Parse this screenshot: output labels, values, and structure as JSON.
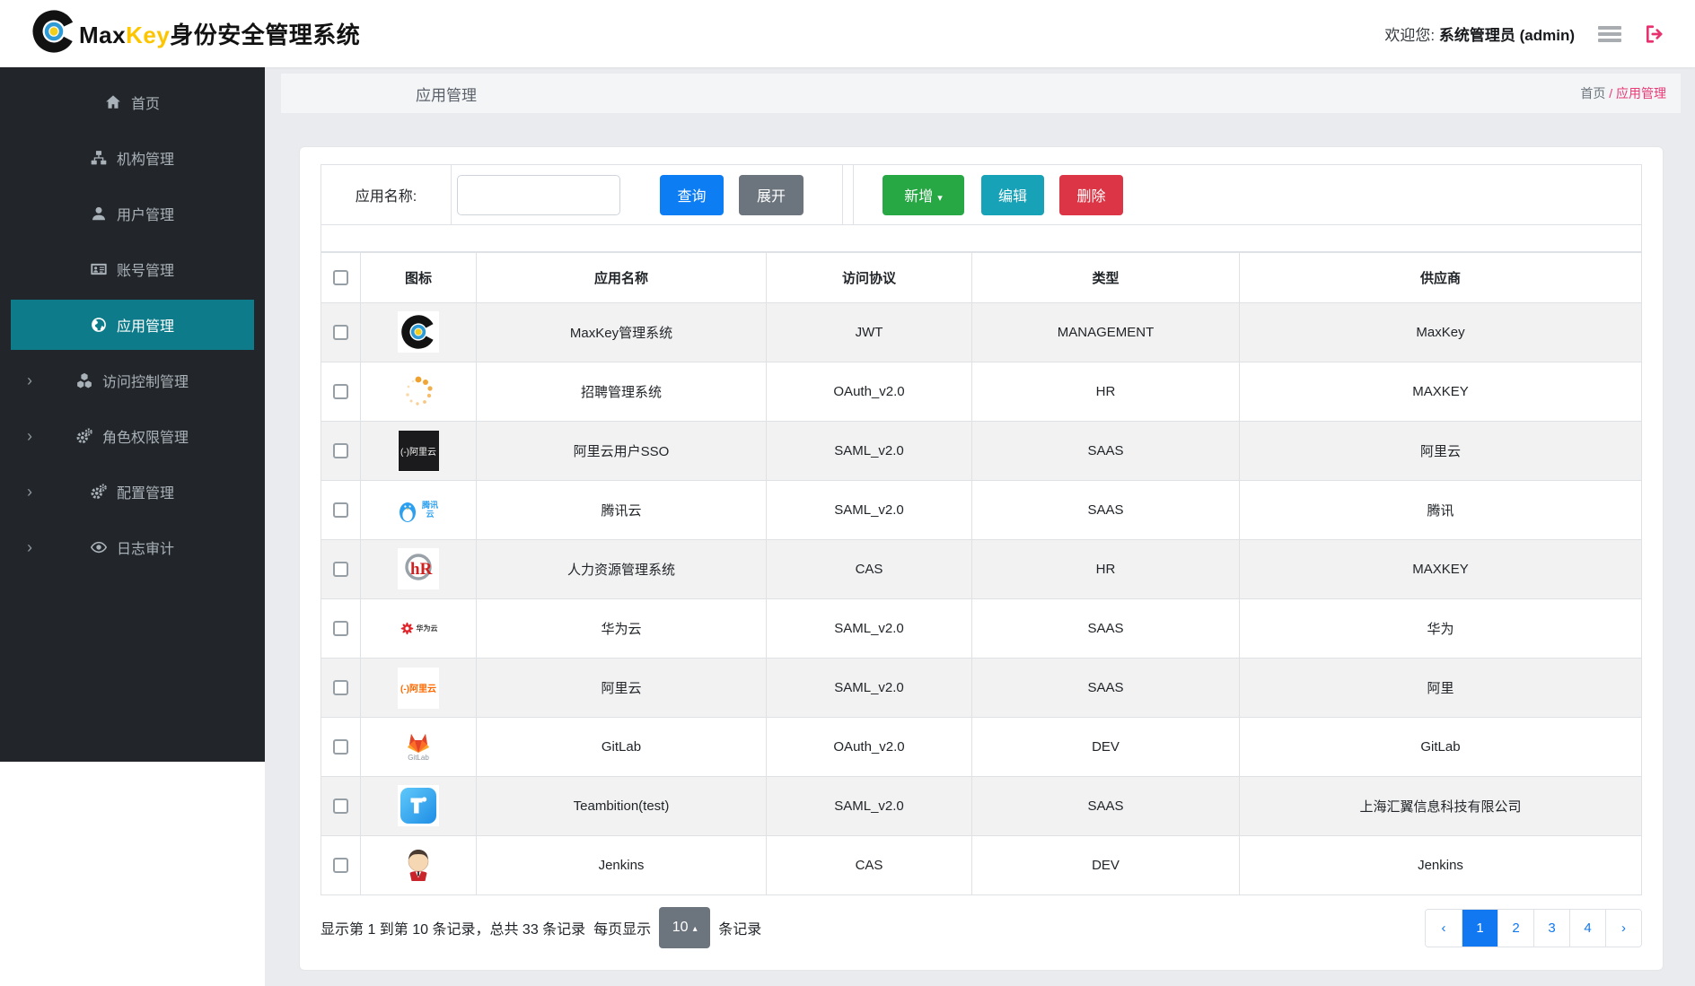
{
  "header": {
    "brand_max": "Max",
    "brand_key": "Key",
    "brand_suffix": "身份安全管理系统",
    "welcome_prefix": "欢迎您:",
    "welcome_user": "系统管理员 (admin)"
  },
  "sidebar": {
    "items": [
      {
        "key": "home",
        "label": "首页",
        "icon": "home-icon",
        "active": false,
        "expandable": false
      },
      {
        "key": "org",
        "label": "机构管理",
        "icon": "sitemap-icon",
        "active": false,
        "expandable": false
      },
      {
        "key": "user",
        "label": "用户管理",
        "icon": "user-icon",
        "active": false,
        "expandable": false
      },
      {
        "key": "account",
        "label": "账号管理",
        "icon": "id-card-icon",
        "active": false,
        "expandable": false
      },
      {
        "key": "app",
        "label": "应用管理",
        "icon": "globe-icon",
        "active": true,
        "expandable": false
      },
      {
        "key": "access",
        "label": "访问控制管理",
        "icon": "cubes-icon",
        "active": false,
        "expandable": true
      },
      {
        "key": "role",
        "label": "角色权限管理",
        "icon": "gears-icon",
        "active": false,
        "expandable": true
      },
      {
        "key": "config",
        "label": "配置管理",
        "icon": "gears-icon",
        "active": false,
        "expandable": true
      },
      {
        "key": "audit",
        "label": "日志审计",
        "icon": "eye-icon",
        "active": false,
        "expandable": true
      }
    ]
  },
  "page": {
    "title": "应用管理",
    "breadcrumb_home": "首页",
    "breadcrumb_sep": "/",
    "breadcrumb_current": "应用管理"
  },
  "toolbar": {
    "search_label": "应用名称:",
    "search_value": "",
    "query_label": "查询",
    "expand_label": "展开",
    "add_label": "新增",
    "add_caret": "▾",
    "edit_label": "编辑",
    "delete_label": "删除"
  },
  "table": {
    "columns": [
      "图标",
      "应用名称",
      "访问协议",
      "类型",
      "供应商"
    ],
    "rows": [
      {
        "icon": "maxkey-logo-icon",
        "name": "MaxKey管理系统",
        "protocol": "JWT",
        "type": "MANAGEMENT",
        "vendor": "MaxKey"
      },
      {
        "icon": "spinner-dots-icon",
        "name": "招聘管理系统",
        "protocol": "OAuth_v2.0",
        "type": "HR",
        "vendor": "MAXKEY"
      },
      {
        "icon": "aliyun-dark-icon",
        "name": "阿里云用户SSO",
        "protocol": "SAML_v2.0",
        "type": "SAAS",
        "vendor": "阿里云"
      },
      {
        "icon": "tencent-cloud-icon",
        "name": "腾讯云",
        "protocol": "SAML_v2.0",
        "type": "SAAS",
        "vendor": "腾讯"
      },
      {
        "icon": "hr-system-icon",
        "name": "人力资源管理系统",
        "protocol": "CAS",
        "type": "HR",
        "vendor": "MAXKEY"
      },
      {
        "icon": "huawei-cloud-icon",
        "name": "华为云",
        "protocol": "SAML_v2.0",
        "type": "SAAS",
        "vendor": "华为"
      },
      {
        "icon": "aliyun-light-icon",
        "name": "阿里云",
        "protocol": "SAML_v2.0",
        "type": "SAAS",
        "vendor": "阿里"
      },
      {
        "icon": "gitlab-icon",
        "name": "GitLab",
        "protocol": "OAuth_v2.0",
        "type": "DEV",
        "vendor": "GitLab"
      },
      {
        "icon": "teambition-icon",
        "name": "Teambition(test)",
        "protocol": "SAML_v2.0",
        "type": "SAAS",
        "vendor": "上海汇翼信息科技有限公司"
      },
      {
        "icon": "jenkins-icon",
        "name": "Jenkins",
        "protocol": "CAS",
        "type": "DEV",
        "vendor": "Jenkins"
      }
    ],
    "tile_texts": {
      "aliyun": "(-)阿里云",
      "tencent": "腾讯云",
      "huawei": "华为云",
      "gitlab": "GitLab"
    }
  },
  "footer": {
    "records_text": "显示第 1 到第 10 条记录，总共 33 条记录",
    "per_page_prefix": "每页显示",
    "page_size": "10",
    "page_size_caret": "▴",
    "per_page_suffix": "条记录",
    "pagination": {
      "prev": "‹",
      "pages": [
        "1",
        "2",
        "3",
        "4"
      ],
      "active": "1",
      "next": "›"
    }
  },
  "colors": {
    "sidebar_bg": "#22262b",
    "sidebar_active": "#0d7b8a",
    "primary_blue": "#0d7df4",
    "secondary_gray": "#6c757d",
    "success_green": "#28a745",
    "info_teal": "#17a2b8",
    "danger_red": "#dc3545",
    "accent_pink": "#e73a76",
    "brand_yellow": "#fdc500",
    "content_bg": "#e9ebee",
    "stripe_gray": "#f2f2f2"
  }
}
